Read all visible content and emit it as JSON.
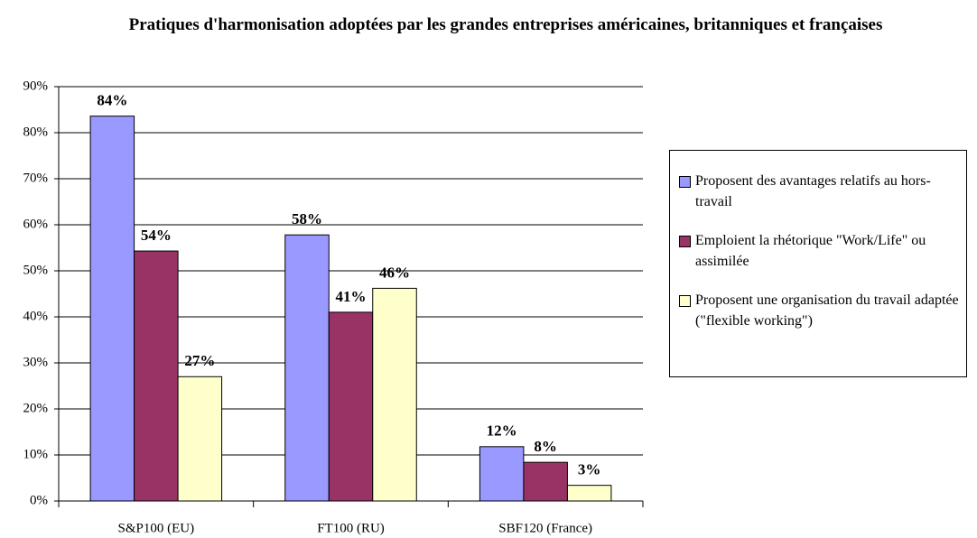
{
  "chart_data": {
    "type": "bar",
    "title": "Pratiques d'harmonisation adoptées par les grandes entreprises américaines, britanniques et françaises",
    "categories": [
      "S&P100 (EU)",
      "FT100 (RU)",
      "SBF120 (France)"
    ],
    "series": [
      {
        "name": "Proposent des avantages relatifs au hors-travail",
        "color": "#9999ff",
        "values": [
          83.6,
          57.8,
          11.8
        ],
        "value_labels": [
          "84%",
          "58%",
          "12%"
        ]
      },
      {
        "name": "Emploient la rhétorique \"Work/Life\" ou assimilée",
        "color": "#993366",
        "values": [
          54.3,
          41.0,
          8.4
        ],
        "value_labels": [
          "54%",
          "41%",
          "8%"
        ]
      },
      {
        "name": "Proposent une organisation du travail adaptée (\"flexible working\")",
        "color": "#ffffcc",
        "values": [
          27.0,
          46.2,
          3.4
        ],
        "value_labels": [
          "27%",
          "46%",
          "3%"
        ]
      }
    ],
    "ylim": [
      0,
      90
    ],
    "yticks": [
      {
        "value": 0,
        "label": "0%"
      },
      {
        "value": 10,
        "label": "10%"
      },
      {
        "value": 20,
        "label": "20%"
      },
      {
        "value": 30,
        "label": "30%"
      },
      {
        "value": 40,
        "label": "40%"
      },
      {
        "value": 50,
        "label": "50%"
      },
      {
        "value": 60,
        "label": "60%"
      },
      {
        "value": 70,
        "label": "70%"
      },
      {
        "value": 80,
        "label": "80%"
      },
      {
        "value": 90,
        "label": "90%"
      }
    ],
    "grid": true
  }
}
